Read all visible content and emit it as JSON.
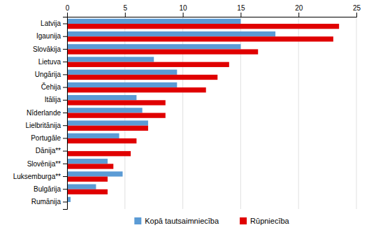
{
  "chart_data": {
    "type": "bar",
    "orientation": "horizontal",
    "categories": [
      "Latvija",
      "Igaunija",
      "Slovākija",
      "Lietuva",
      "Ungārija",
      "Čehija",
      "Itālija",
      "Nīderlande",
      "Lielbritānija",
      "Portugāle",
      "Dānija**",
      "Slovēnija**",
      "Luksemburga**",
      "Bulgārija",
      "Rumānija"
    ],
    "series": [
      {
        "name": "Kopā tautsaimniecība",
        "color": "#5B9BD5",
        "values": [
          15.0,
          18.0,
          15.0,
          7.5,
          9.5,
          9.5,
          6.0,
          6.5,
          7.0,
          4.5,
          0.0,
          3.5,
          4.8,
          2.5,
          0.3
        ]
      },
      {
        "name": "Rūpniecība",
        "color": "#E00000",
        "values": [
          23.5,
          23.0,
          16.5,
          14.0,
          13.0,
          12.0,
          8.5,
          8.5,
          7.0,
          6.0,
          5.5,
          4.0,
          3.5,
          3.5,
          0.0
        ]
      }
    ],
    "xlim": [
      0,
      25
    ],
    "xticks": [
      0,
      5,
      10,
      15,
      20,
      25
    ],
    "grid": true,
    "legend": "bottom"
  }
}
